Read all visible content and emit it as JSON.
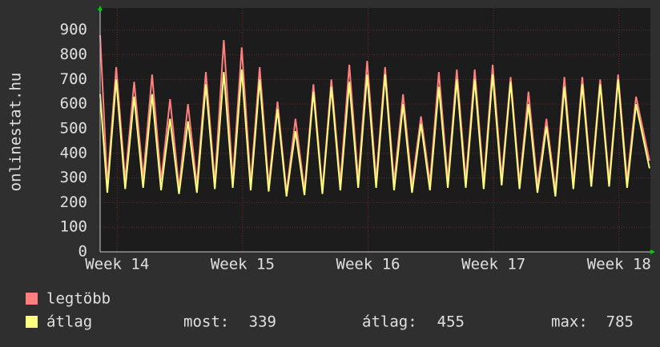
{
  "chart_data": {
    "type": "line",
    "ylabel": "onlinestat.hu",
    "x": [
      0,
      0.4,
      0.65,
      0.9,
      1.4,
      1.65,
      1.9,
      2.4,
      2.65,
      2.9,
      3.4,
      3.65,
      3.9,
      4.4,
      4.65,
      4.9,
      5.4,
      5.65,
      5.9,
      6.4,
      6.65,
      6.9,
      7.4,
      7.65,
      7.9,
      8.4,
      8.65,
      8.9,
      9.4,
      9.65,
      9.9,
      10.4,
      10.65,
      10.9,
      11.4,
      11.65,
      11.9,
      12.4,
      12.65,
      12.9,
      13.4,
      13.65,
      13.9,
      14.4,
      14.65,
      14.9,
      15.4,
      15.65,
      15.9,
      16.4,
      16.65,
      16.9,
      17.4,
      17.65,
      17.9,
      18.4,
      18.65,
      18.9,
      19.4,
      19.65,
      19.9,
      20.4,
      20.65,
      20.9,
      21.4,
      21.65,
      21.9,
      22.4,
      22.65,
      22.9,
      23.4,
      23.65,
      23.9,
      24.4,
      24.65,
      24.9,
      25.4,
      25.65,
      25.9,
      26.4,
      26.65,
      26.9,
      27.4,
      27.65,
      27.9,
      28.4,
      28.65,
      28.9,
      29.4,
      29.65,
      29.9,
      30.65
    ],
    "series": [
      {
        "name": "legtöbb",
        "color": "#ff7f7f",
        "values": [
          880,
          270,
          510,
          750,
          290,
          490,
          690,
          300,
          510,
          720,
          290,
          450,
          620,
          260,
          430,
          600,
          270,
          500,
          730,
          280,
          570,
          860,
          290,
          560,
          830,
          280,
          510,
          750,
          270,
          440,
          610,
          240,
          390,
          540,
          250,
          460,
          680,
          250,
          470,
          700,
          280,
          520,
          760,
          290,
          530,
          775,
          290,
          520,
          750,
          280,
          460,
          640,
          270,
          410,
          550,
          280,
          500,
          730,
          290,
          510,
          740,
          290,
          510,
          740,
          280,
          520,
          760,
          300,
          500,
          710,
          280,
          460,
          650,
          270,
          400,
          540,
          250,
          480,
          710,
          280,
          490,
          710,
          290,
          490,
          700,
          290,
          500,
          720,
          290,
          460,
          630,
          370
        ]
      },
      {
        "name": "átlag",
        "color": "#ffff7f",
        "values": [
          640,
          240,
          470,
          700,
          255,
          440,
          630,
          260,
          450,
          640,
          250,
          400,
          540,
          235,
          380,
          530,
          240,
          460,
          680,
          255,
          490,
          730,
          260,
          500,
          740,
          250,
          470,
          700,
          245,
          410,
          580,
          225,
          360,
          490,
          230,
          440,
          650,
          235,
          450,
          670,
          250,
          470,
          690,
          260,
          490,
          720,
          260,
          490,
          720,
          250,
          420,
          600,
          240,
          380,
          520,
          250,
          460,
          670,
          260,
          480,
          700,
          260,
          480,
          700,
          255,
          490,
          720,
          270,
          480,
          690,
          255,
          430,
          600,
          240,
          370,
          510,
          225,
          450,
          670,
          255,
          470,
          680,
          265,
          470,
          680,
          265,
          480,
          700,
          260,
          430,
          600,
          339
        ]
      }
    ],
    "xlim": [
      0,
      30.7
    ],
    "xticks": [
      {
        "value": 0.95,
        "label": "Week 14"
      },
      {
        "value": 7.95,
        "label": "Week 15"
      },
      {
        "value": 14.95,
        "label": "Week 16"
      },
      {
        "value": 21.95,
        "label": "Week 17"
      },
      {
        "value": 28.95,
        "label": "Week 18"
      }
    ],
    "ylim": [
      0,
      990
    ],
    "yticks": [
      0,
      100,
      200,
      300,
      400,
      500,
      600,
      700,
      800,
      900
    ],
    "grid": true,
    "stats": [
      {
        "label": "most:",
        "value": 339
      },
      {
        "label": "átlag:",
        "value": 455
      },
      {
        "label": "max:",
        "value": 785
      }
    ]
  }
}
